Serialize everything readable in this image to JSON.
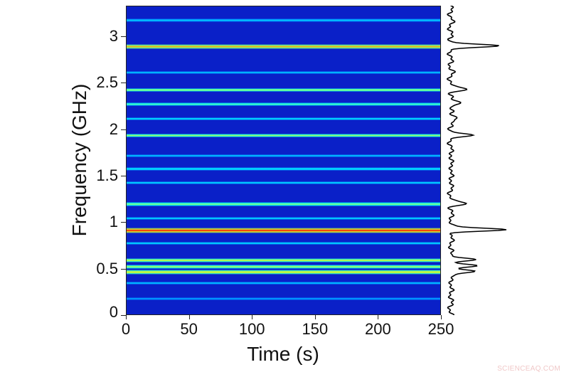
{
  "chart_data": {
    "type": "heatmap",
    "subtype": "spectrogram with side spectrum",
    "title": "",
    "xlabel": "Time (s)",
    "ylabel": "Frequency (GHz)",
    "xlim": [
      0,
      250
    ],
    "ylim": [
      0,
      3.33
    ],
    "xticks": [
      0,
      50,
      100,
      150,
      200,
      250
    ],
    "yticks": [
      0,
      0.5,
      1,
      1.5,
      2,
      2.5,
      3
    ],
    "ytick_labels": [
      "0",
      "0.5",
      "1",
      "1.5",
      "2",
      "2.5",
      "3"
    ],
    "xtick_labels": [
      "0",
      "50",
      "100",
      "150",
      "200",
      "250"
    ],
    "colormap": "jet",
    "background_color": "#0a20c8",
    "bands": [
      {
        "freq_ghz": 3.18,
        "intensity": 0.25
      },
      {
        "freq_ghz": 2.9,
        "intensity": 0.75
      },
      {
        "freq_ghz": 2.62,
        "intensity": 0.25
      },
      {
        "freq_ghz": 2.43,
        "intensity": 0.55
      },
      {
        "freq_ghz": 2.28,
        "intensity": 0.42
      },
      {
        "freq_ghz": 2.12,
        "intensity": 0.3
      },
      {
        "freq_ghz": 1.94,
        "intensity": 0.55
      },
      {
        "freq_ghz": 1.72,
        "intensity": 0.25
      },
      {
        "freq_ghz": 1.58,
        "intensity": 0.3
      },
      {
        "freq_ghz": 1.43,
        "intensity": 0.28
      },
      {
        "freq_ghz": 1.2,
        "intensity": 0.5
      },
      {
        "freq_ghz": 1.05,
        "intensity": 0.28
      },
      {
        "freq_ghz": 0.92,
        "intensity": 0.95
      },
      {
        "freq_ghz": 0.78,
        "intensity": 0.28
      },
      {
        "freq_ghz": 0.6,
        "intensity": 0.6
      },
      {
        "freq_ghz": 0.53,
        "intensity": 0.55
      },
      {
        "freq_ghz": 0.47,
        "intensity": 0.65
      },
      {
        "freq_ghz": 0.35,
        "intensity": 0.25
      },
      {
        "freq_ghz": 0.18,
        "intensity": 0.2
      }
    ],
    "side_spectrum": {
      "description": "Time-integrated spectrum plotted vertically to the right; peaks match bands",
      "peaks_ghz": [
        2.9,
        2.43,
        2.28,
        2.12,
        1.94,
        1.2,
        0.92,
        0.6,
        0.53,
        0.47
      ],
      "peak_relative_heights": [
        0.85,
        0.3,
        0.2,
        0.15,
        0.35,
        0.28,
        1.0,
        0.45,
        0.42,
        0.45
      ]
    }
  },
  "watermark": "SCIENCEAQ.COM"
}
